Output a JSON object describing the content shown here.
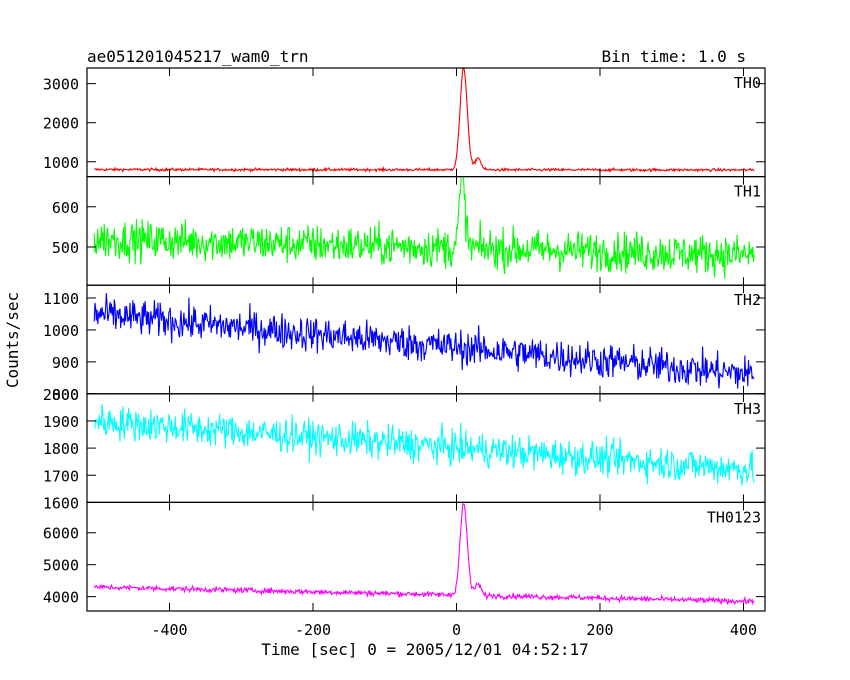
{
  "header": {
    "left_title": "ae051201045217_wam0_trn",
    "right_title": "Bin time: 1.0 s"
  },
  "axes": {
    "xlabel": "Time [sec] 0 = 2005/12/01 04:52:17",
    "ylabel": "Counts/sec"
  },
  "chart_data": {
    "type": "line",
    "x_range": [
      -515,
      430
    ],
    "x_ticks": [
      -400,
      -200,
      0,
      200,
      400
    ],
    "x_data_range": [
      -505,
      415
    ],
    "bin_time_s": 1.0,
    "panels": [
      {
        "name": "TH0",
        "color": "#ff0000",
        "ylim": [
          620,
          3400
        ],
        "yticks": [
          1000,
          2000,
          3000
        ],
        "baseline_start": 800,
        "baseline_end": 790,
        "noise": 25,
        "peak": {
          "time": 10,
          "value": 3400,
          "sigma": 5
        },
        "bump": {
          "time": 30,
          "value": 1100,
          "sigma": 4
        }
      },
      {
        "name": "TH1",
        "color": "#00ff00",
        "ylim": [
          405,
          675
        ],
        "yticks": [
          500,
          600
        ],
        "baseline_start": 520,
        "baseline_end": 480,
        "noise": 35,
        "peak": {
          "time": 8,
          "value": 670,
          "sigma": 4
        },
        "bump": null
      },
      {
        "name": "TH2",
        "color": "#0000ff",
        "ylim": [
          800,
          1140
        ],
        "yticks": [
          800,
          900,
          1000,
          1100
        ],
        "baseline_start": 1050,
        "baseline_end": 860,
        "noise": 40,
        "peak": null,
        "bump": null
      },
      {
        "name": "TH3",
        "color": "#00ffff",
        "ylim": [
          1600,
          2000
        ],
        "yticks": [
          1600,
          1700,
          1800,
          1900,
          2000
        ],
        "baseline_start": 1900,
        "baseline_end": 1720,
        "noise": 45,
        "peak": null,
        "bump": null
      },
      {
        "name": "TH0123",
        "color": "#ff00ff",
        "ylim": [
          3550,
          6950
        ],
        "yticks": [
          4000,
          5000,
          6000
        ],
        "baseline_start": 4300,
        "baseline_end": 3850,
        "noise": 60,
        "peak": {
          "time": 10,
          "value": 6900,
          "sigma": 5
        },
        "bump": {
          "time": 30,
          "value": 4400,
          "sigma": 4
        }
      }
    ]
  }
}
